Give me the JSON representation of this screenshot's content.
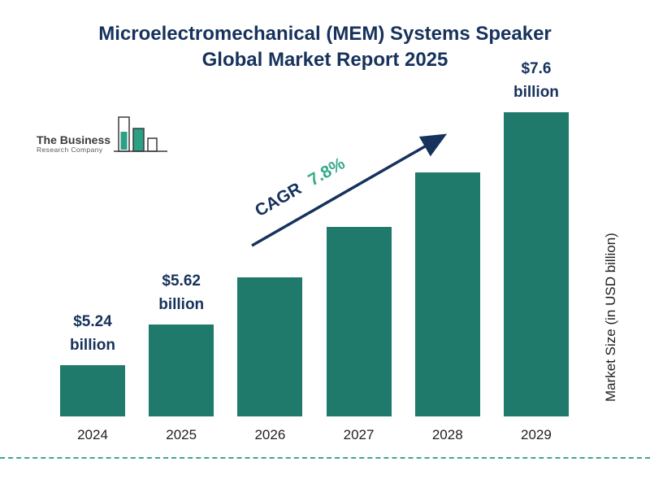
{
  "title": {
    "line1": "Microelectromechanical (MEM) Systems Speaker",
    "line2": "Global Market Report 2025"
  },
  "logo": {
    "name_line1": "The Business",
    "name_line2": "Research Company"
  },
  "annotation": {
    "cagr_label": "CAGR",
    "cagr_value": "7.8%"
  },
  "axis": {
    "y_label": "Market Size (in USD billion)"
  },
  "colors": {
    "bar": "#1F7A6B",
    "navy": "#16325C",
    "green": "#35A98B",
    "dashed_line": "#3FA796"
  },
  "chart_data": {
    "type": "bar",
    "title": "Microelectromechanical (MEM) Systems Speaker Global Market Report 2025",
    "categories": [
      "2024",
      "2025",
      "2026",
      "2027",
      "2028",
      "2029"
    ],
    "values": [
      5.24,
      5.62,
      6.06,
      6.53,
      7.04,
      7.6
    ],
    "values_estimated_indices": [
      2,
      3,
      4
    ],
    "value_unit": "USD billion",
    "bar_labels": [
      {
        "index": 0,
        "amount": "$5.24",
        "unit": "billion"
      },
      {
        "index": 1,
        "amount": "$5.62",
        "unit": "billion"
      },
      {
        "index": 5,
        "amount": "$7.6",
        "unit": "billion"
      }
    ],
    "cagr": "7.8%",
    "xlabel": "",
    "ylabel": "Market Size (in USD billion)",
    "legend": "none",
    "grid": false,
    "axis_truncated": true
  }
}
